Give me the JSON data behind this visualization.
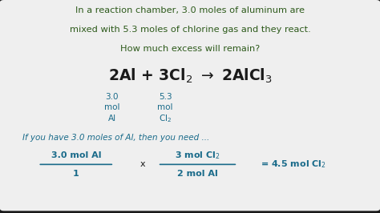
{
  "bg_color": "#1a1a1a",
  "panel_color": "#efefef",
  "dark_green": "#2d5a1b",
  "teal_blue": "#1a6b8a",
  "title_lines": [
    "In a reaction chamber, 3.0 moles of aluminum are",
    "mixed with 5.3 moles of chlorine gas and they react.",
    "How much excess will remain?"
  ],
  "equation_color": "#1a1a1a",
  "annotation_color": "#1a6b8a",
  "label_color": "#2d5a1b",
  "bottom_text_color": "#1a6b8a"
}
